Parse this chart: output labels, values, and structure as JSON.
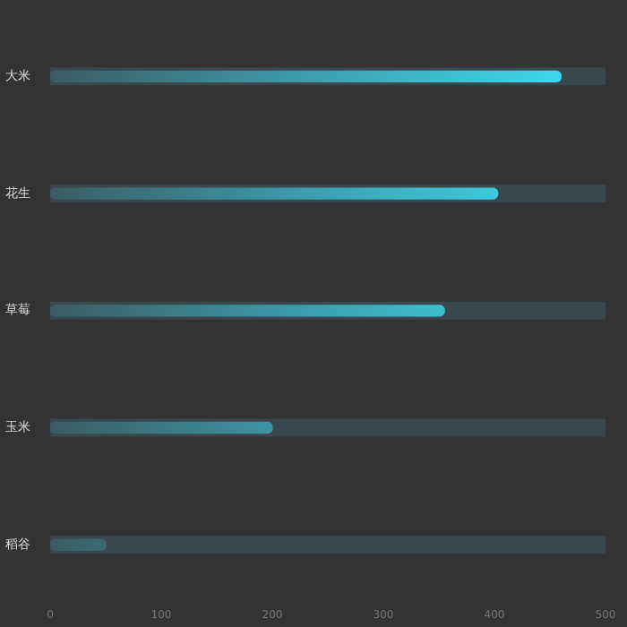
{
  "chart_data": {
    "type": "bar",
    "orientation": "horizontal",
    "categories": [
      "大米",
      "花生",
      "草莓",
      "玉米",
      "稻谷"
    ],
    "values": [
      460,
      403,
      355,
      200,
      50
    ],
    "color": "#3ee1f7",
    "xlim": [
      0,
      500
    ],
    "xticks": [
      0,
      100,
      200,
      300,
      400,
      500
    ],
    "grid": false,
    "legend": false
  }
}
